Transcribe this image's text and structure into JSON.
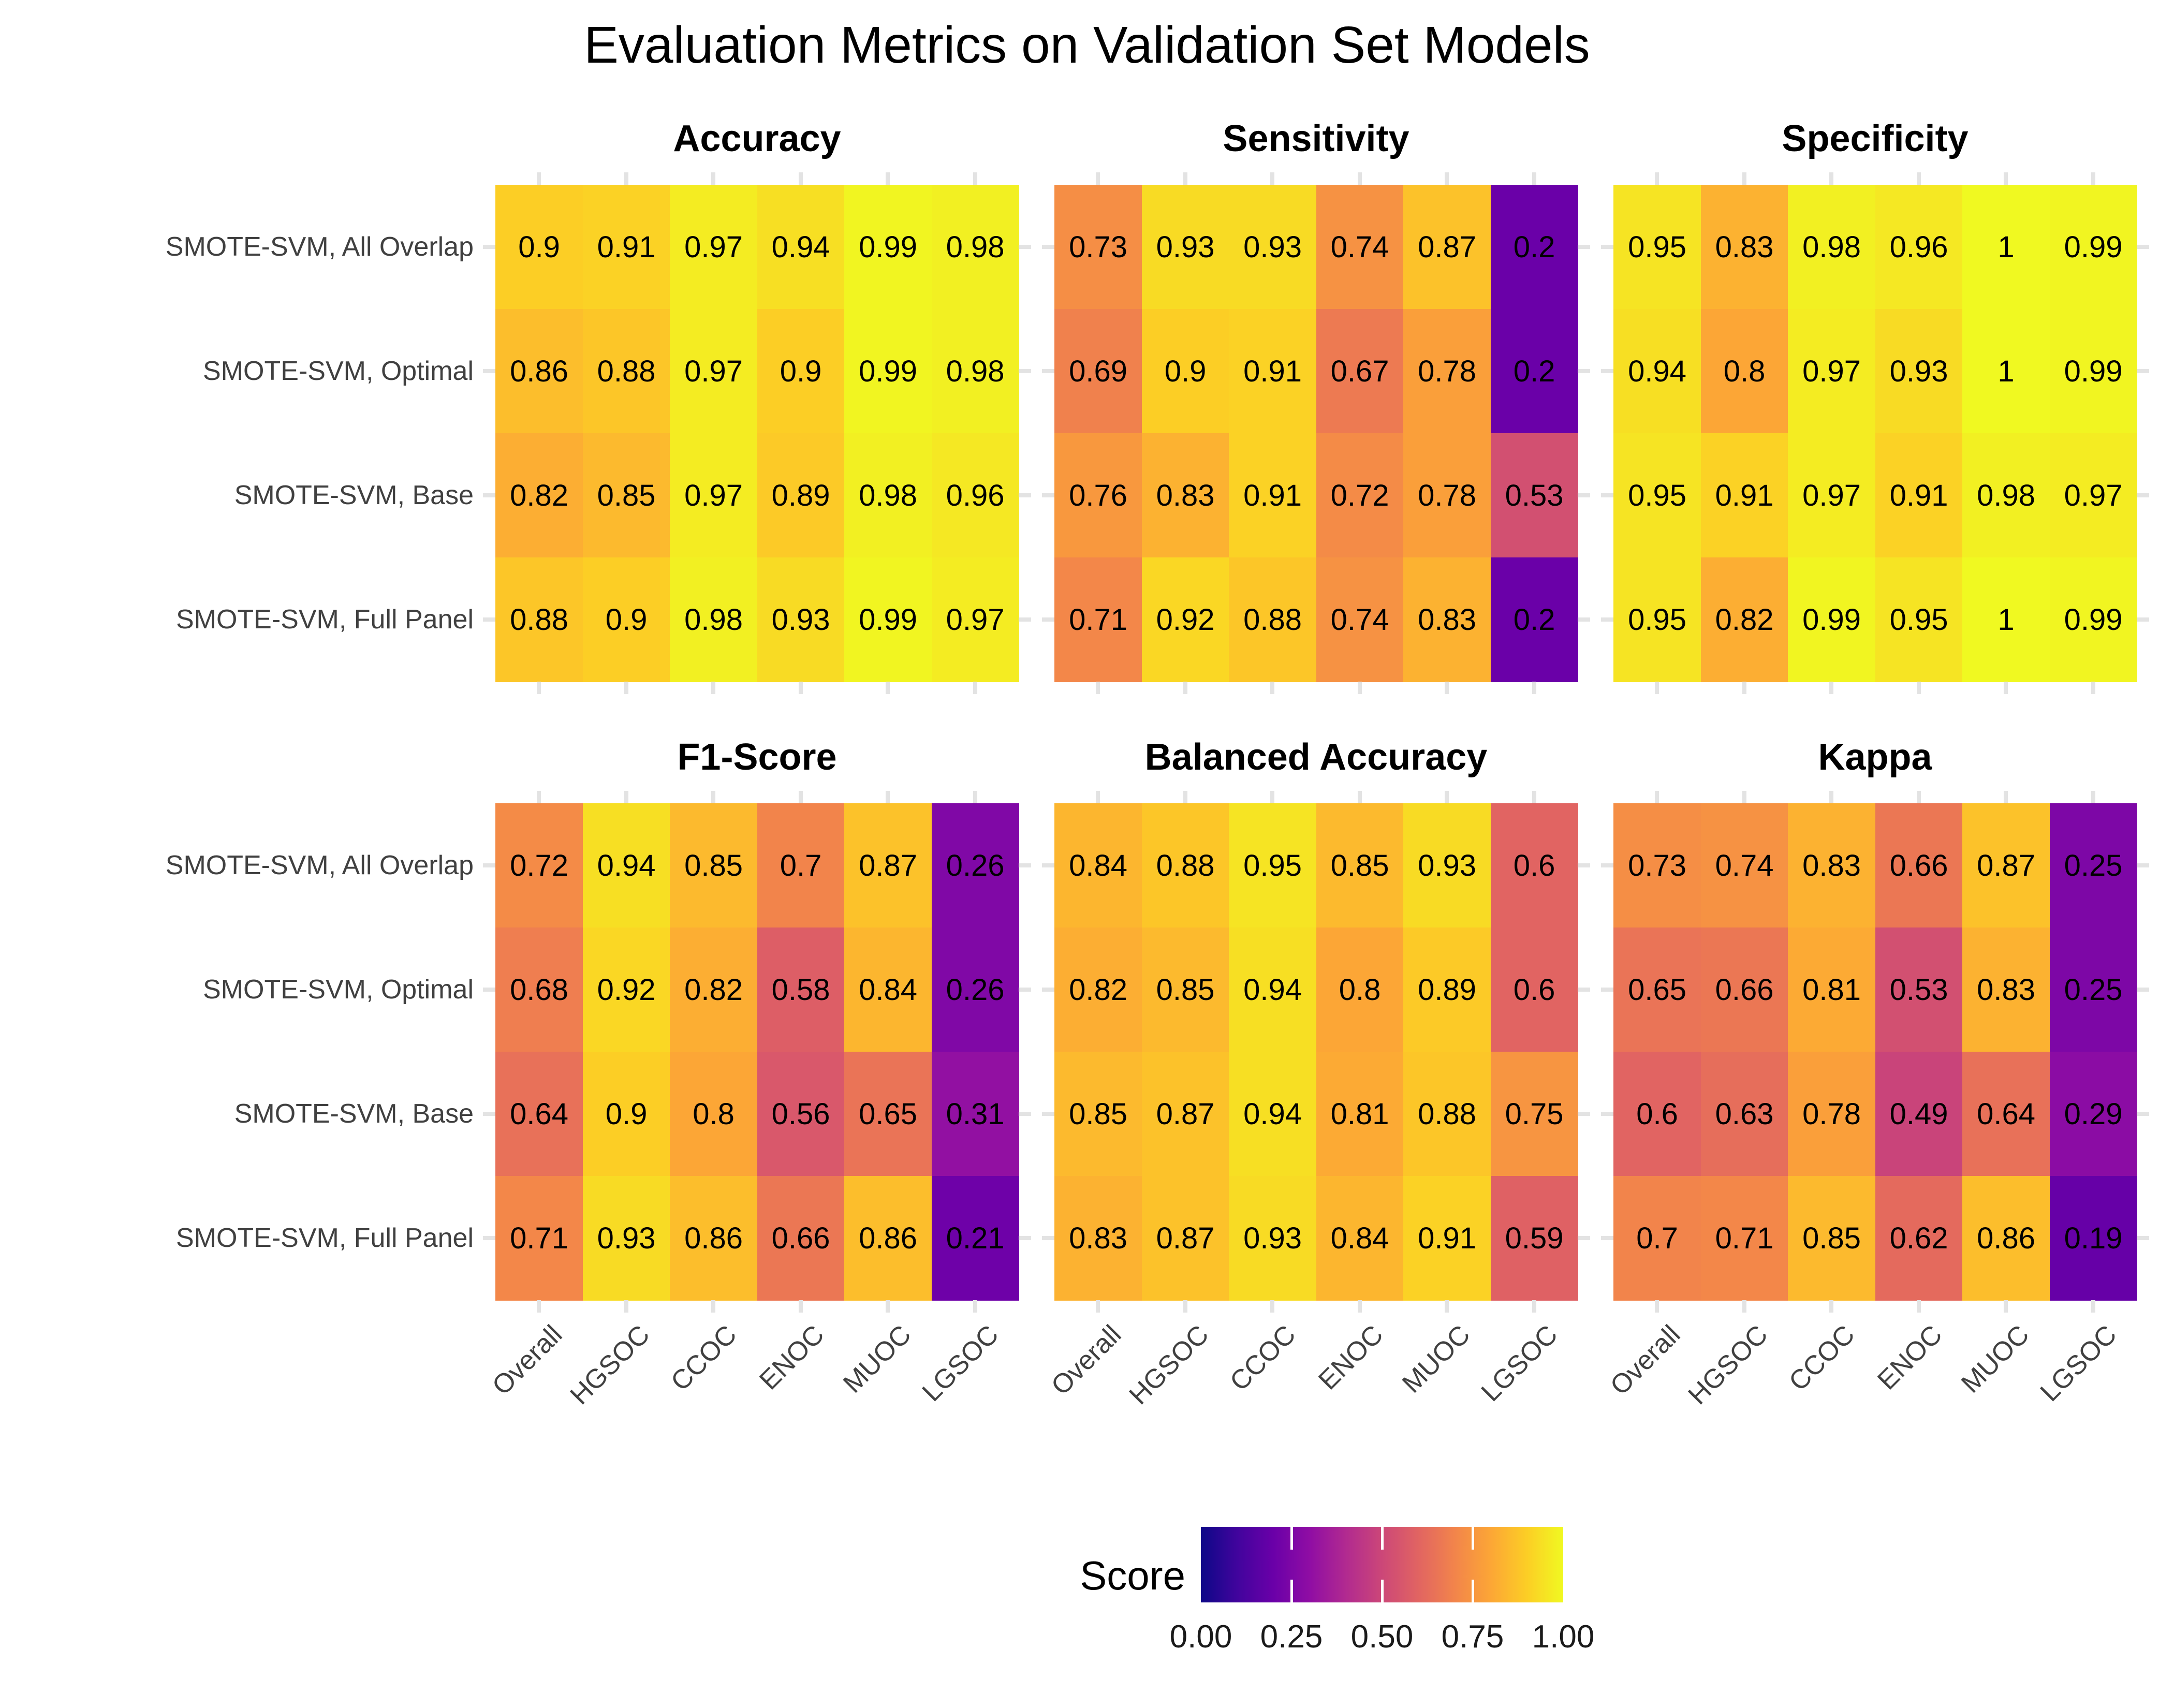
{
  "title": "Evaluation Metrics on Validation Set Models",
  "legend": {
    "label": "Score",
    "tick_labels": [
      "0.00",
      "0.25",
      "0.50",
      "0.75",
      "1.00"
    ]
  },
  "style": {
    "background": "#ffffff",
    "title_color": "#000000",
    "axis_text_color": "#404040",
    "cell_text_color": "#000000",
    "axis_tick_color": "#e3e3e3",
    "colorbar_tick_color": "#ffffff",
    "plasma_anchors": [
      "#0d0887",
      "#41049d",
      "#6a00a8",
      "#8f0da4",
      "#b12a90",
      "#cc4778",
      "#e16462",
      "#f2844b",
      "#fca636",
      "#fcce25",
      "#f0f921"
    ]
  },
  "chart_data": {
    "type": "heatmap",
    "title": "Evaluation Metrics on Validation Set Models",
    "facet_layout": [
      [
        "Accuracy",
        "Sensitivity",
        "Specificity"
      ],
      [
        "F1-Score",
        "Balanced Accuracy",
        "Kappa"
      ]
    ],
    "rows": [
      "SMOTE-SVM, All Overlap",
      "SMOTE-SVM, Optimal",
      "SMOTE-SVM, Base",
      "SMOTE-SVM, Full Panel"
    ],
    "columns": [
      "Overall",
      "HGSOC",
      "CCOC",
      "ENOC",
      "MUOC",
      "LGSOC"
    ],
    "colormap": "plasma",
    "value_range": [
      0,
      1
    ],
    "legend_title": "Score",
    "legend_ticks": [
      0.0,
      0.25,
      0.5,
      0.75,
      1.0
    ],
    "facets": [
      {
        "name": "Accuracy",
        "values": [
          [
            0.9,
            0.91,
            0.97,
            0.94,
            0.99,
            0.98
          ],
          [
            0.86,
            0.88,
            0.97,
            0.9,
            0.99,
            0.98
          ],
          [
            0.82,
            0.85,
            0.97,
            0.89,
            0.98,
            0.96
          ],
          [
            0.88,
            0.9,
            0.98,
            0.93,
            0.99,
            0.97
          ]
        ]
      },
      {
        "name": "Sensitivity",
        "values": [
          [
            0.73,
            0.93,
            0.93,
            0.74,
            0.87,
            0.2
          ],
          [
            0.69,
            0.9,
            0.91,
            0.67,
            0.78,
            0.2
          ],
          [
            0.76,
            0.83,
            0.91,
            0.72,
            0.78,
            0.53
          ],
          [
            0.71,
            0.92,
            0.88,
            0.74,
            0.83,
            0.2
          ]
        ]
      },
      {
        "name": "Specificity",
        "values": [
          [
            0.95,
            0.83,
            0.98,
            0.96,
            1,
            0.99
          ],
          [
            0.94,
            0.8,
            0.97,
            0.93,
            1,
            0.99
          ],
          [
            0.95,
            0.91,
            0.97,
            0.91,
            0.98,
            0.97
          ],
          [
            0.95,
            0.82,
            0.99,
            0.95,
            1,
            0.99
          ]
        ]
      },
      {
        "name": "F1-Score",
        "values": [
          [
            0.72,
            0.94,
            0.85,
            0.7,
            0.87,
            0.26
          ],
          [
            0.68,
            0.92,
            0.82,
            0.58,
            0.84,
            0.26
          ],
          [
            0.64,
            0.9,
            0.8,
            0.56,
            0.65,
            0.31
          ],
          [
            0.71,
            0.93,
            0.86,
            0.66,
            0.86,
            0.21
          ]
        ]
      },
      {
        "name": "Balanced Accuracy",
        "values": [
          [
            0.84,
            0.88,
            0.95,
            0.85,
            0.93,
            0.6
          ],
          [
            0.82,
            0.85,
            0.94,
            0.8,
            0.89,
            0.6
          ],
          [
            0.85,
            0.87,
            0.94,
            0.81,
            0.88,
            0.75
          ],
          [
            0.83,
            0.87,
            0.93,
            0.84,
            0.91,
            0.59
          ]
        ]
      },
      {
        "name": "Kappa",
        "values": [
          [
            0.73,
            0.74,
            0.83,
            0.66,
            0.87,
            0.25
          ],
          [
            0.65,
            0.66,
            0.81,
            0.53,
            0.83,
            0.25
          ],
          [
            0.6,
            0.63,
            0.78,
            0.49,
            0.64,
            0.29
          ],
          [
            0.7,
            0.71,
            0.85,
            0.62,
            0.86,
            0.19
          ]
        ]
      }
    ]
  }
}
